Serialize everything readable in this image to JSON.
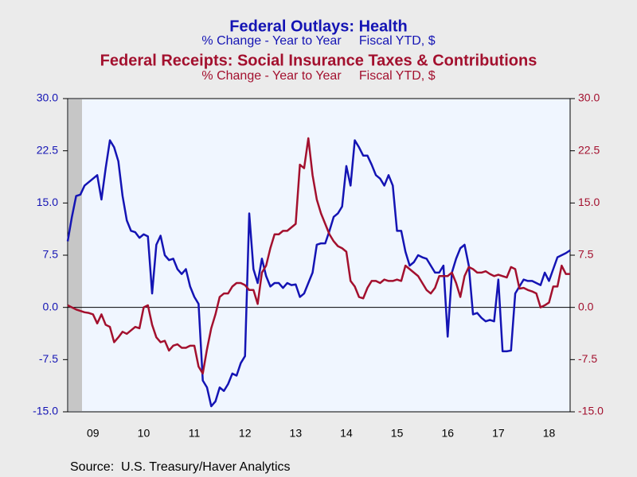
{
  "chart_data": {
    "type": "line",
    "series": [
      {
        "name": "Federal Outlays: Health",
        "subtitle": "% Change - Year to Year     Fiscal YTD, $",
        "color": "#1414b4",
        "axis": "y",
        "values": [
          9.5,
          13,
          16,
          16.2,
          17.5,
          18,
          18.5,
          19,
          15.5,
          20,
          24,
          23,
          21,
          16,
          12.5,
          11,
          10.8,
          10,
          10.5,
          10.2,
          2,
          9,
          10.3,
          7.5,
          6.8,
          7,
          5.5,
          4.8,
          5.5,
          3,
          1.5,
          0.5,
          -10.5,
          -11.5,
          -14.2,
          -13.5,
          -11.5,
          -12,
          -11,
          -9.5,
          -9.8,
          -8,
          -7,
          13.5,
          5.5,
          3.5,
          7,
          4.5,
          3,
          3.5,
          3.5,
          2.8,
          3.5,
          3.2,
          3.3,
          1.5,
          2,
          3.5,
          5,
          9,
          9.2,
          9.2,
          11,
          13,
          13.5,
          14.5,
          20.3,
          17.5,
          24,
          23,
          21.8,
          21.8,
          20.5,
          19,
          18.5,
          17.5,
          19,
          17.5,
          11,
          11,
          8,
          6,
          6.5,
          7.5,
          7.2,
          7,
          6,
          5,
          5,
          6,
          -4.2,
          5,
          7,
          8.5,
          9,
          6,
          -1,
          -0.8,
          -1.5,
          -2,
          -1.8,
          -2,
          4,
          -6.3,
          -6.3,
          -6.2,
          2,
          3,
          4,
          3.8,
          3.8,
          3.5,
          3.2,
          5,
          3.8,
          5.5,
          7.2,
          7.5,
          7.8,
          8.2
        ]
      },
      {
        "name": "Federal Receipts: Social Insurance Taxes & Contributions",
        "subtitle": "% Change - Year to Year     Fiscal YTD, $",
        "color": "#a3102e",
        "axis": "y2",
        "values": [
          0.3,
          0,
          -0.3,
          -0.5,
          -0.7,
          -0.8,
          -1,
          -2.3,
          -1,
          -2.5,
          -2.8,
          -5,
          -4.3,
          -3.5,
          -3.8,
          -3.3,
          -2.8,
          -3,
          0,
          0.3,
          -2.5,
          -4.3,
          -5,
          -4.8,
          -6.2,
          -5.5,
          -5.3,
          -5.8,
          -5.8,
          -5.5,
          -5.5,
          -8.5,
          -9.5,
          -6,
          -3,
          -1,
          1.5,
          2,
          2,
          3,
          3.5,
          3.5,
          3.2,
          2.5,
          2.5,
          0.5,
          5,
          6,
          8.5,
          10.5,
          10.5,
          11,
          11,
          11.5,
          12,
          20.5,
          20,
          24.3,
          19,
          15.5,
          13.5,
          12,
          10.5,
          9.5,
          8.8,
          8.5,
          8,
          3.8,
          3,
          1.5,
          1.3,
          2.8,
          3.8,
          3.8,
          3.5,
          4,
          3.8,
          3.8,
          4,
          3.8,
          6,
          5.5,
          5,
          4.5,
          3.5,
          2.5,
          2,
          2.8,
          4.5,
          4.5,
          4.5,
          5,
          3.5,
          1.5,
          4.5,
          5.8,
          5.5,
          5,
          5,
          5.2,
          4.8,
          4.5,
          4.7,
          4.5,
          4.3,
          5.8,
          5.5,
          2.7,
          2.8,
          2.5,
          2.3,
          2,
          0,
          0.3,
          0.7,
          3,
          3,
          6,
          4.8,
          4.8
        ]
      }
    ],
    "categories": [
      null,
      null,
      null,
      null,
      null,
      null,
      "09",
      null,
      null,
      null,
      null,
      null,
      null,
      null,
      null,
      null,
      null,
      null,
      "10",
      null,
      null,
      null,
      null,
      null,
      null,
      null,
      null,
      null,
      null,
      null,
      "11",
      null,
      null,
      null,
      null,
      null,
      null,
      null,
      null,
      null,
      null,
      null,
      "12",
      null,
      null,
      null,
      null,
      null,
      null,
      null,
      null,
      null,
      null,
      null,
      "13",
      null,
      null,
      null,
      null,
      null,
      null,
      null,
      null,
      null,
      null,
      null,
      "14",
      null,
      null,
      null,
      null,
      null,
      null,
      null,
      null,
      null,
      null,
      null,
      "15",
      null,
      null,
      null,
      null,
      null,
      null,
      null,
      null,
      null,
      null,
      null,
      "16",
      null,
      null,
      null,
      null,
      null,
      null,
      null,
      null,
      null,
      null,
      null,
      "17",
      null,
      null,
      null,
      null,
      null,
      null,
      null,
      null,
      null,
      null,
      null,
      "18",
      null,
      null,
      null,
      null,
      null
    ],
    "ylim": [
      -15,
      30
    ],
    "yticks": [
      {
        "value": 30,
        "label": "30.0"
      },
      {
        "value": 22.5,
        "label": "22.5"
      },
      {
        "value": 15,
        "label": "15.0"
      },
      {
        "value": 7.5,
        "label": "7.5"
      },
      {
        "value": 0,
        "label": "0.0"
      },
      {
        "value": -7.5,
        "label": "-7.5"
      },
      {
        "value": -15,
        "label": "-15.0"
      }
    ],
    "y2lim": [
      -15,
      30
    ],
    "y2ticks": [
      {
        "value": 30,
        "label": "30.0"
      },
      {
        "value": 22.5,
        "label": "22.5"
      },
      {
        "value": 15,
        "label": "15.0"
      },
      {
        "value": 7.5,
        "label": "7.5"
      },
      {
        "value": 0,
        "label": "0.0"
      },
      {
        "value": -7.5,
        "label": "-7.5"
      },
      {
        "value": -15,
        "label": "-15.0"
      }
    ],
    "zero_line": true,
    "source": "Source:  U.S. Treasury/Haver Analytics"
  }
}
